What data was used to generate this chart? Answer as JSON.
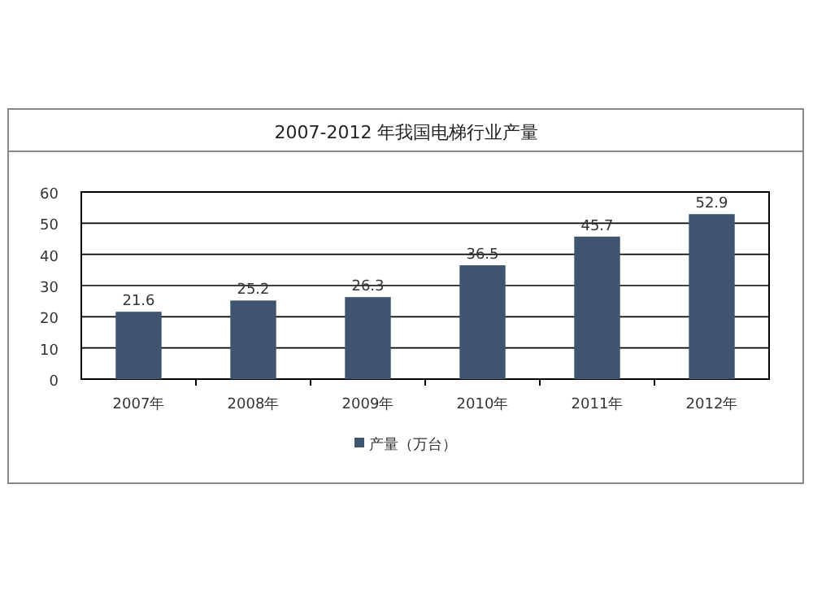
{
  "chart_data": {
    "type": "bar",
    "title": "2007-2012 年我国电梯行业产量",
    "categories": [
      "2007年",
      "2008年",
      "2009年",
      "2010年",
      "2011年",
      "2012年"
    ],
    "series": [
      {
        "name": "产量（万台）",
        "color": "#3e546f",
        "values": [
          21.6,
          25.2,
          26.3,
          36.5,
          45.7,
          52.9
        ]
      }
    ],
    "ylim": [
      0,
      60
    ],
    "yticks": [
      0,
      10,
      20,
      30,
      40,
      50,
      60
    ],
    "grid": "y",
    "data_labels": true,
    "legend": "bottom"
  }
}
